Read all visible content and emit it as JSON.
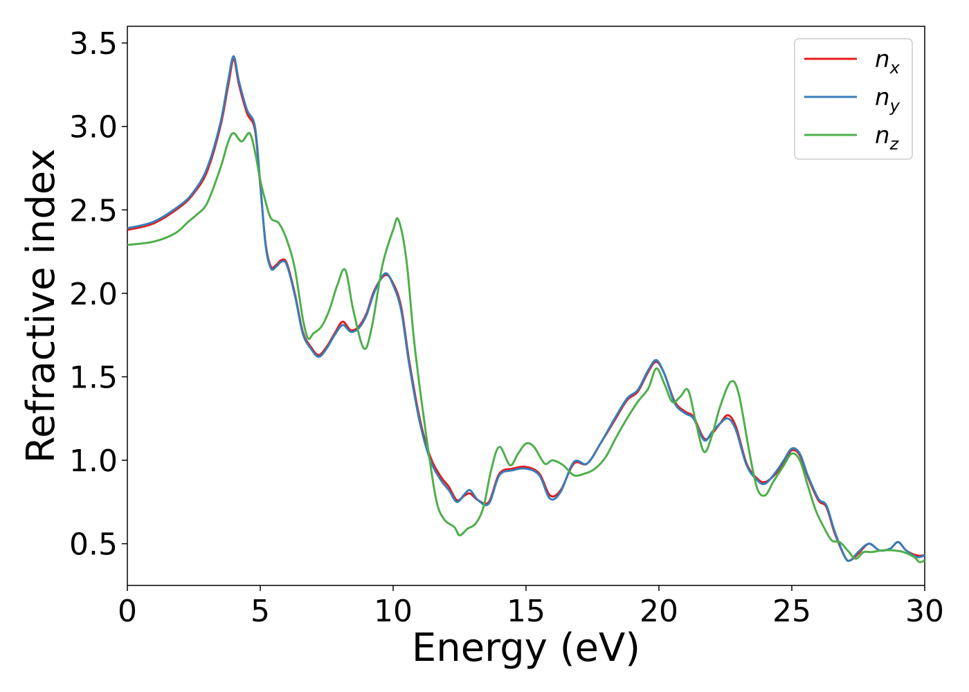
{
  "chart_data": {
    "type": "line",
    "title": "",
    "xlabel": "Energy (eV)",
    "ylabel": "Refractive index",
    "xlim": [
      0,
      30
    ],
    "ylim": [
      0.25,
      3.6
    ],
    "xticks": [
      0,
      5,
      10,
      15,
      20,
      25,
      30
    ],
    "yticks": [
      0.5,
      1.0,
      1.5,
      2.0,
      2.5,
      3.0,
      3.5
    ],
    "xtick_labels": [
      "0",
      "5",
      "10",
      "15",
      "20",
      "25",
      "30"
    ],
    "ytick_labels": [
      "0.5",
      "1.0",
      "1.5",
      "2.0",
      "2.5",
      "3.0",
      "3.5"
    ],
    "grid": false,
    "legend_position": "top-right",
    "series": [
      {
        "name": "n_x",
        "legend_base": "n",
        "legend_sub": "x",
        "color": "#e41a1c",
        "points": [
          [
            0,
            2.38
          ],
          [
            1,
            2.42
          ],
          [
            2,
            2.52
          ],
          [
            2.5,
            2.6
          ],
          [
            3,
            2.73
          ],
          [
            3.5,
            3.0
          ],
          [
            3.8,
            3.25
          ],
          [
            4.0,
            3.4
          ],
          [
            4.2,
            3.25
          ],
          [
            4.5,
            3.08
          ],
          [
            4.8,
            2.98
          ],
          [
            5.0,
            2.65
          ],
          [
            5.2,
            2.3
          ],
          [
            5.4,
            2.16
          ],
          [
            5.6,
            2.17
          ],
          [
            5.8,
            2.2
          ],
          [
            6.0,
            2.18
          ],
          [
            6.3,
            2.0
          ],
          [
            6.6,
            1.77
          ],
          [
            6.9,
            1.68
          ],
          [
            7.2,
            1.63
          ],
          [
            7.5,
            1.68
          ],
          [
            7.8,
            1.76
          ],
          [
            8.1,
            1.83
          ],
          [
            8.4,
            1.78
          ],
          [
            8.7,
            1.8
          ],
          [
            9.0,
            1.88
          ],
          [
            9.3,
            2.02
          ],
          [
            9.7,
            2.11
          ],
          [
            10.0,
            2.06
          ],
          [
            10.3,
            1.92
          ],
          [
            10.6,
            1.6
          ],
          [
            11.0,
            1.25
          ],
          [
            11.4,
            1.02
          ],
          [
            11.8,
            0.9
          ],
          [
            12.1,
            0.84
          ],
          [
            12.4,
            0.76
          ],
          [
            12.7,
            0.79
          ],
          [
            12.9,
            0.8
          ],
          [
            13.2,
            0.76
          ],
          [
            13.6,
            0.75
          ],
          [
            14.0,
            0.92
          ],
          [
            14.5,
            0.95
          ],
          [
            15.0,
            0.96
          ],
          [
            15.5,
            0.92
          ],
          [
            15.9,
            0.79
          ],
          [
            16.3,
            0.82
          ],
          [
            16.8,
            0.98
          ],
          [
            17.3,
            0.98
          ],
          [
            17.8,
            1.1
          ],
          [
            18.3,
            1.23
          ],
          [
            18.8,
            1.36
          ],
          [
            19.2,
            1.41
          ],
          [
            19.6,
            1.53
          ],
          [
            19.9,
            1.59
          ],
          [
            20.2,
            1.52
          ],
          [
            20.6,
            1.35
          ],
          [
            21.0,
            1.29
          ],
          [
            21.3,
            1.26
          ],
          [
            21.7,
            1.13
          ],
          [
            22.0,
            1.16
          ],
          [
            22.3,
            1.22
          ],
          [
            22.6,
            1.27
          ],
          [
            22.9,
            1.2
          ],
          [
            23.3,
            0.98
          ],
          [
            23.7,
            0.89
          ],
          [
            24.0,
            0.87
          ],
          [
            24.4,
            0.92
          ],
          [
            24.7,
            0.99
          ],
          [
            25.0,
            1.06
          ],
          [
            25.3,
            1.03
          ],
          [
            25.6,
            0.9
          ],
          [
            26.0,
            0.76
          ],
          [
            26.3,
            0.72
          ],
          [
            26.6,
            0.57
          ],
          [
            27.0,
            0.42
          ],
          [
            27.2,
            0.4
          ],
          [
            27.5,
            0.44
          ],
          [
            27.9,
            0.5
          ],
          [
            28.3,
            0.46
          ],
          [
            28.7,
            0.47
          ],
          [
            29.0,
            0.51
          ],
          [
            29.3,
            0.46
          ],
          [
            29.7,
            0.43
          ],
          [
            30,
            0.43
          ]
        ]
      },
      {
        "name": "n_y",
        "legend_base": "n",
        "legend_sub": "y",
        "color": "#377eb8",
        "points": [
          [
            0,
            2.39
          ],
          [
            1,
            2.43
          ],
          [
            2,
            2.53
          ],
          [
            2.5,
            2.61
          ],
          [
            3,
            2.75
          ],
          [
            3.5,
            3.02
          ],
          [
            3.8,
            3.28
          ],
          [
            4.0,
            3.42
          ],
          [
            4.2,
            3.27
          ],
          [
            4.5,
            3.1
          ],
          [
            4.8,
            3.0
          ],
          [
            5.0,
            2.66
          ],
          [
            5.2,
            2.29
          ],
          [
            5.4,
            2.15
          ],
          [
            5.6,
            2.16
          ],
          [
            5.8,
            2.19
          ],
          [
            6.0,
            2.17
          ],
          [
            6.3,
            1.99
          ],
          [
            6.6,
            1.76
          ],
          [
            6.9,
            1.67
          ],
          [
            7.2,
            1.62
          ],
          [
            7.5,
            1.67
          ],
          [
            7.8,
            1.75
          ],
          [
            8.1,
            1.81
          ],
          [
            8.4,
            1.77
          ],
          [
            8.7,
            1.79
          ],
          [
            9.0,
            1.87
          ],
          [
            9.3,
            2.01
          ],
          [
            9.7,
            2.12
          ],
          [
            10.0,
            2.05
          ],
          [
            10.3,
            1.9
          ],
          [
            10.6,
            1.58
          ],
          [
            11.0,
            1.23
          ],
          [
            11.4,
            1.0
          ],
          [
            11.8,
            0.88
          ],
          [
            12.1,
            0.82
          ],
          [
            12.4,
            0.75
          ],
          [
            12.7,
            0.8
          ],
          [
            12.9,
            0.82
          ],
          [
            13.2,
            0.76
          ],
          [
            13.6,
            0.74
          ],
          [
            14.0,
            0.91
          ],
          [
            14.5,
            0.94
          ],
          [
            15.0,
            0.95
          ],
          [
            15.5,
            0.91
          ],
          [
            15.9,
            0.77
          ],
          [
            16.3,
            0.81
          ],
          [
            16.8,
            0.99
          ],
          [
            17.3,
            0.98
          ],
          [
            17.8,
            1.1
          ],
          [
            18.3,
            1.24
          ],
          [
            18.8,
            1.37
          ],
          [
            19.2,
            1.42
          ],
          [
            19.6,
            1.54
          ],
          [
            19.9,
            1.6
          ],
          [
            20.2,
            1.52
          ],
          [
            20.6,
            1.34
          ],
          [
            21.0,
            1.28
          ],
          [
            21.3,
            1.25
          ],
          [
            21.7,
            1.12
          ],
          [
            22.0,
            1.17
          ],
          [
            22.3,
            1.22
          ],
          [
            22.6,
            1.25
          ],
          [
            22.9,
            1.18
          ],
          [
            23.3,
            0.97
          ],
          [
            23.7,
            0.88
          ],
          [
            24.0,
            0.86
          ],
          [
            24.4,
            0.93
          ],
          [
            24.7,
            1.0
          ],
          [
            25.0,
            1.07
          ],
          [
            25.3,
            1.04
          ],
          [
            25.6,
            0.91
          ],
          [
            26.0,
            0.77
          ],
          [
            26.3,
            0.73
          ],
          [
            26.6,
            0.58
          ],
          [
            27.0,
            0.42
          ],
          [
            27.2,
            0.4
          ],
          [
            27.5,
            0.45
          ],
          [
            27.9,
            0.5
          ],
          [
            28.3,
            0.46
          ],
          [
            28.7,
            0.47
          ],
          [
            29.0,
            0.51
          ],
          [
            29.3,
            0.46
          ],
          [
            29.7,
            0.42
          ],
          [
            30,
            0.43
          ]
        ]
      },
      {
        "name": "n_z",
        "legend_base": "n",
        "legend_sub": "z",
        "color": "#4daf4a",
        "points": [
          [
            0,
            2.29
          ],
          [
            1,
            2.31
          ],
          [
            1.8,
            2.36
          ],
          [
            2.3,
            2.43
          ],
          [
            2.6,
            2.47
          ],
          [
            3,
            2.54
          ],
          [
            3.5,
            2.75
          ],
          [
            3.8,
            2.91
          ],
          [
            4.0,
            2.96
          ],
          [
            4.3,
            2.91
          ],
          [
            4.6,
            2.96
          ],
          [
            4.8,
            2.85
          ],
          [
            5.0,
            2.68
          ],
          [
            5.2,
            2.55
          ],
          [
            5.4,
            2.45
          ],
          [
            5.7,
            2.42
          ],
          [
            6.0,
            2.32
          ],
          [
            6.3,
            2.15
          ],
          [
            6.6,
            1.85
          ],
          [
            6.8,
            1.73
          ],
          [
            7.0,
            1.76
          ],
          [
            7.3,
            1.8
          ],
          [
            7.6,
            1.9
          ],
          [
            7.9,
            2.05
          ],
          [
            8.2,
            2.14
          ],
          [
            8.5,
            1.9
          ],
          [
            8.9,
            1.67
          ],
          [
            9.2,
            1.8
          ],
          [
            9.6,
            2.17
          ],
          [
            10.0,
            2.38
          ],
          [
            10.2,
            2.44
          ],
          [
            10.5,
            2.2
          ],
          [
            10.8,
            1.7
          ],
          [
            11.2,
            1.2
          ],
          [
            11.6,
            0.78
          ],
          [
            11.9,
            0.65
          ],
          [
            12.3,
            0.6
          ],
          [
            12.5,
            0.55
          ],
          [
            12.8,
            0.59
          ],
          [
            13.1,
            0.62
          ],
          [
            13.4,
            0.72
          ],
          [
            13.7,
            0.95
          ],
          [
            14.0,
            1.08
          ],
          [
            14.4,
            0.97
          ],
          [
            14.7,
            1.04
          ],
          [
            15.0,
            1.1
          ],
          [
            15.3,
            1.08
          ],
          [
            15.7,
            0.98
          ],
          [
            16.0,
            1.0
          ],
          [
            16.4,
            0.97
          ],
          [
            16.8,
            0.91
          ],
          [
            17.2,
            0.92
          ],
          [
            17.6,
            0.95
          ],
          [
            18.0,
            1.02
          ],
          [
            18.4,
            1.14
          ],
          [
            18.8,
            1.25
          ],
          [
            19.2,
            1.35
          ],
          [
            19.6,
            1.43
          ],
          [
            19.9,
            1.55
          ],
          [
            20.2,
            1.46
          ],
          [
            20.5,
            1.35
          ],
          [
            20.8,
            1.38
          ],
          [
            21.1,
            1.42
          ],
          [
            21.4,
            1.22
          ],
          [
            21.7,
            1.05
          ],
          [
            22.0,
            1.15
          ],
          [
            22.3,
            1.32
          ],
          [
            22.7,
            1.47
          ],
          [
            23.0,
            1.4
          ],
          [
            23.4,
            1.05
          ],
          [
            23.7,
            0.83
          ],
          [
            24.0,
            0.79
          ],
          [
            24.3,
            0.87
          ],
          [
            24.7,
            0.97
          ],
          [
            25.0,
            1.04
          ],
          [
            25.3,
            1.0
          ],
          [
            25.6,
            0.85
          ],
          [
            25.9,
            0.7
          ],
          [
            26.2,
            0.6
          ],
          [
            26.5,
            0.52
          ],
          [
            26.8,
            0.51
          ],
          [
            27.1,
            0.46
          ],
          [
            27.4,
            0.41
          ],
          [
            27.7,
            0.45
          ],
          [
            28.0,
            0.45
          ],
          [
            28.4,
            0.46
          ],
          [
            28.8,
            0.46
          ],
          [
            29.2,
            0.45
          ],
          [
            29.6,
            0.42
          ],
          [
            29.8,
            0.39
          ],
          [
            30,
            0.4
          ]
        ]
      }
    ]
  }
}
